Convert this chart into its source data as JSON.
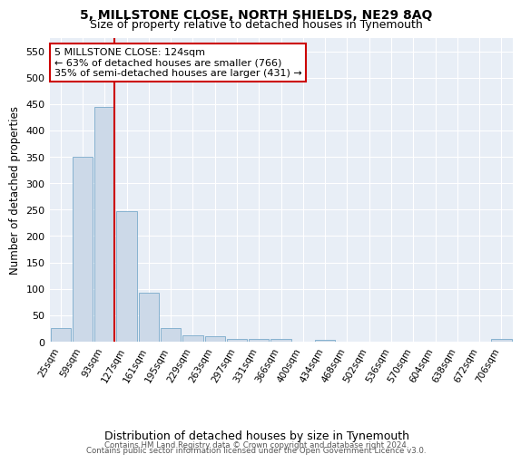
{
  "title": "5, MILLSTONE CLOSE, NORTH SHIELDS, NE29 8AQ",
  "subtitle": "Size of property relative to detached houses in Tynemouth",
  "xlabel": "Distribution of detached houses by size in Tynemouth",
  "ylabel": "Number of detached properties",
  "bar_color": "#ccd9e8",
  "bar_edge_color": "#7aaacb",
  "bg_color": "#e8eef6",
  "grid_color": "#ffffff",
  "vline_color": "#cc0000",
  "annotation_lines": [
    "5 MILLSTONE CLOSE: 124sqm",
    "← 63% of detached houses are smaller (766)",
    "35% of semi-detached houses are larger (431) →"
  ],
  "categories": [
    "25sqm",
    "59sqm",
    "93sqm",
    "127sqm",
    "161sqm",
    "195sqm",
    "229sqm",
    "263sqm",
    "297sqm",
    "331sqm",
    "366sqm",
    "400sqm",
    "434sqm",
    "468sqm",
    "502sqm",
    "536sqm",
    "570sqm",
    "604sqm",
    "638sqm",
    "672sqm",
    "706sqm"
  ],
  "values": [
    25,
    350,
    445,
    247,
    93,
    25,
    12,
    10,
    6,
    6,
    5,
    0,
    3,
    0,
    0,
    0,
    0,
    0,
    0,
    0,
    5
  ],
  "ylim": [
    0,
    575
  ],
  "yticks": [
    0,
    50,
    100,
    150,
    200,
    250,
    300,
    350,
    400,
    450,
    500,
    550
  ],
  "footer_line1": "Contains HM Land Registry data © Crown copyright and database right 2024.",
  "footer_line2": "Contains public sector information licensed under the Open Government Licence v3.0."
}
